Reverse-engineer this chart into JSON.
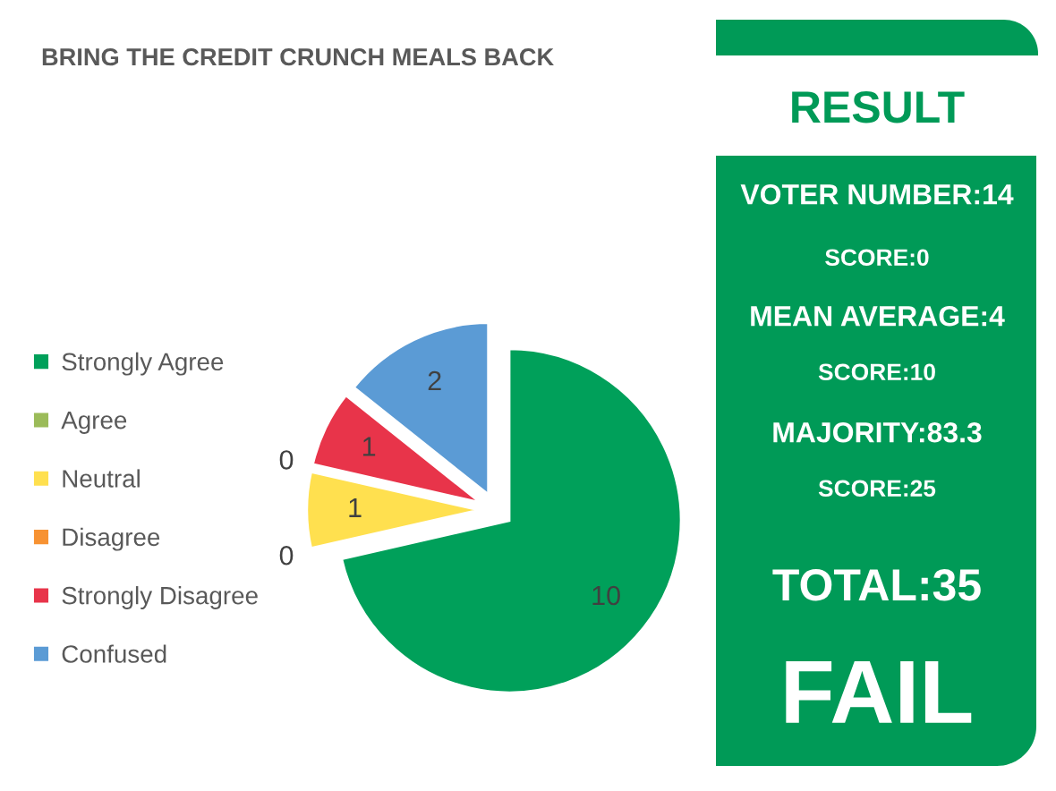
{
  "chart_data": [
    {
      "type": "pie",
      "title": "BRING THE CREDIT CRUNCH MEALS BACK",
      "categories": [
        "Strongly Agree",
        "Agree",
        "Neutral",
        "Disagree",
        "Strongly Disagree",
        "Confused"
      ],
      "values": [
        10,
        0,
        1,
        0,
        1,
        2
      ],
      "value_labels": [
        "10",
        "0",
        "1",
        "0",
        "1",
        "2"
      ],
      "colors": [
        "#00a05a",
        "#9bbb59",
        "#ffe04f",
        "#f79232",
        "#e8344a",
        "#5b9bd5"
      ],
      "legend": "left"
    },
    {
      "type": "other",
      "title": "RESULT",
      "annotations": [
        "VOTER NUMBER:14",
        "SCORE:0",
        "MEAN AVERAGE:4",
        "SCORE:10",
        "MAJORITY:83.3",
        "SCORE:25",
        "TOTAL:35",
        "FAIL"
      ]
    }
  ]
}
